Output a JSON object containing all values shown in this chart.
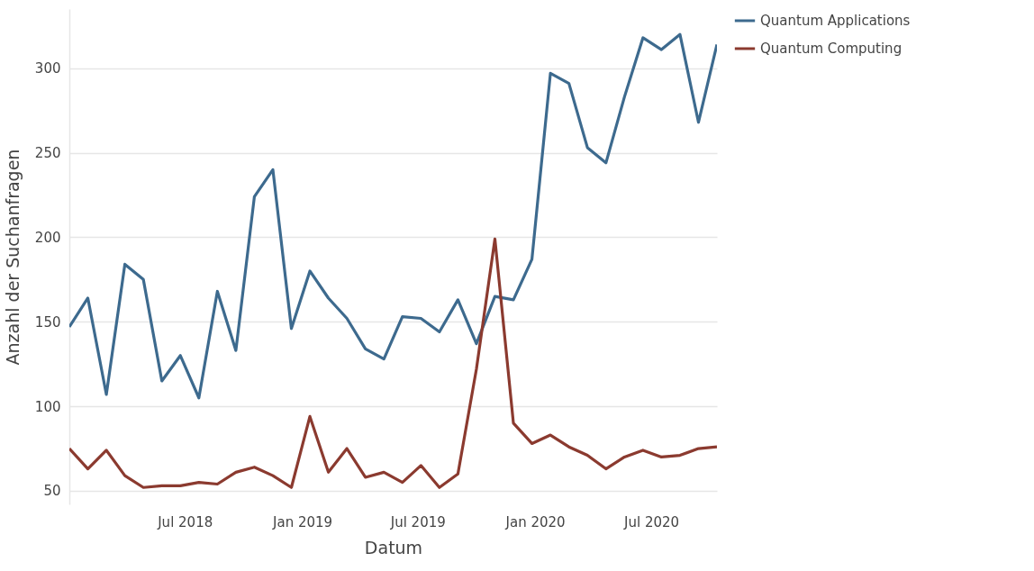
{
  "chart_data": {
    "type": "line",
    "xlabel": "Datum",
    "ylabel": "Anzahl der Suchanfragen",
    "x": [
      "2018-01-01",
      "2018-01-30",
      "2018-02-28",
      "2018-03-29",
      "2018-04-27",
      "2018-05-26",
      "2018-06-24",
      "2018-07-23",
      "2018-08-21",
      "2018-09-19",
      "2018-10-18",
      "2018-11-16",
      "2018-12-15",
      "2019-01-13",
      "2019-02-11",
      "2019-03-12",
      "2019-04-10",
      "2019-05-09",
      "2019-06-07",
      "2019-07-06",
      "2019-08-04",
      "2019-09-02",
      "2019-10-01",
      "2019-10-30",
      "2019-11-28",
      "2019-12-27",
      "2020-01-25",
      "2020-02-23",
      "2020-03-23",
      "2020-04-21",
      "2020-05-20",
      "2020-06-18",
      "2020-07-17",
      "2020-08-15",
      "2020-09-13",
      "2020-10-12"
    ],
    "series": [
      {
        "name": "Quantum Applications",
        "color": "#3d6a8e",
        "values": [
          147,
          164,
          107,
          184,
          175,
          115,
          130,
          105,
          168,
          133,
          224,
          240,
          146,
          180,
          164,
          152,
          134,
          128,
          153,
          152,
          144,
          163,
          137,
          165,
          163,
          187,
          297,
          291,
          253,
          244,
          283,
          318,
          311,
          320,
          268,
          314
        ]
      },
      {
        "name": "Quantum Computing",
        "color": "#8b3a2f",
        "values": [
          75,
          63,
          74,
          59,
          52,
          53,
          53,
          55,
          54,
          61,
          64,
          59,
          52,
          94,
          61,
          75,
          58,
          61,
          55,
          65,
          52,
          60,
          122,
          199,
          90,
          78,
          83,
          76,
          71,
          63,
          70,
          74,
          70,
          71,
          75,
          76
        ]
      }
    ],
    "xlim": [
      "2018-01-01",
      "2020-10-12"
    ],
    "xticks": [
      {
        "value": "2018-07-01",
        "label": "Jul 2018"
      },
      {
        "value": "2019-01-01",
        "label": "Jan 2019"
      },
      {
        "value": "2019-07-01",
        "label": "Jul 2019"
      },
      {
        "value": "2020-01-01",
        "label": "Jan 2020"
      },
      {
        "value": "2020-07-01",
        "label": "Jul 2020"
      }
    ],
    "ylim": [
      42,
      335
    ],
    "yticks": [
      50,
      100,
      150,
      200,
      250,
      300
    ],
    "grid": "y",
    "legend": "top right",
    "line_style": "solid",
    "marker": "none"
  }
}
